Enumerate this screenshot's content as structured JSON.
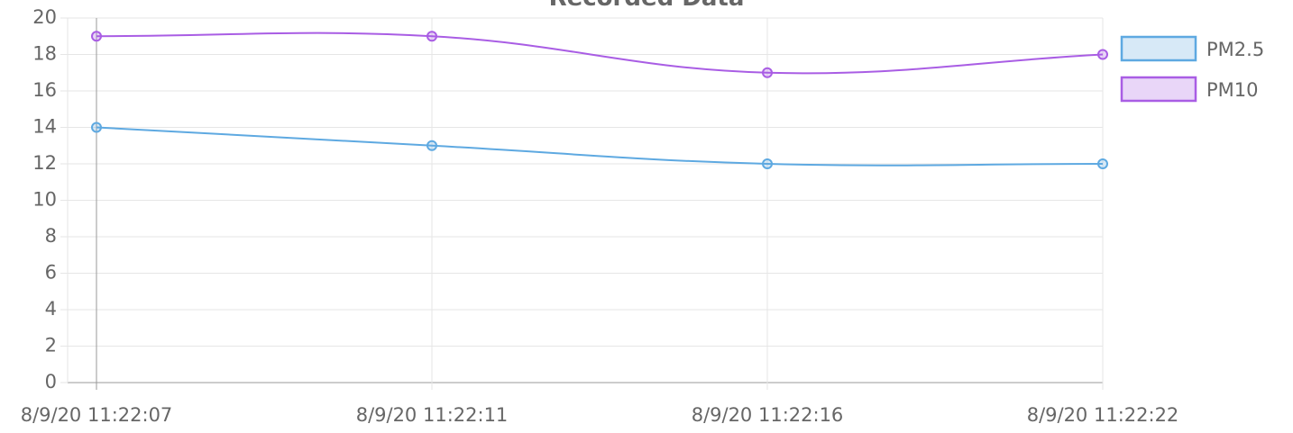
{
  "chart_data": {
    "type": "line",
    "title": "Recorded Data",
    "categories": [
      "8/9/20 11:22:07",
      "8/9/20 11:22:11",
      "8/9/20 11:22:16",
      "8/9/20 11:22:22"
    ],
    "series": [
      {
        "name": "PM2.5",
        "color": "#5ea9e1",
        "values": [
          14,
          13,
          12,
          12
        ]
      },
      {
        "name": "PM10",
        "color": "#a95de4",
        "values": [
          19,
          19,
          17,
          18
        ]
      }
    ],
    "ylim": [
      0,
      20
    ],
    "yticks": [
      0,
      2,
      4,
      6,
      8,
      10,
      12,
      14,
      16,
      18,
      20
    ],
    "grid": true,
    "legend": "right"
  }
}
